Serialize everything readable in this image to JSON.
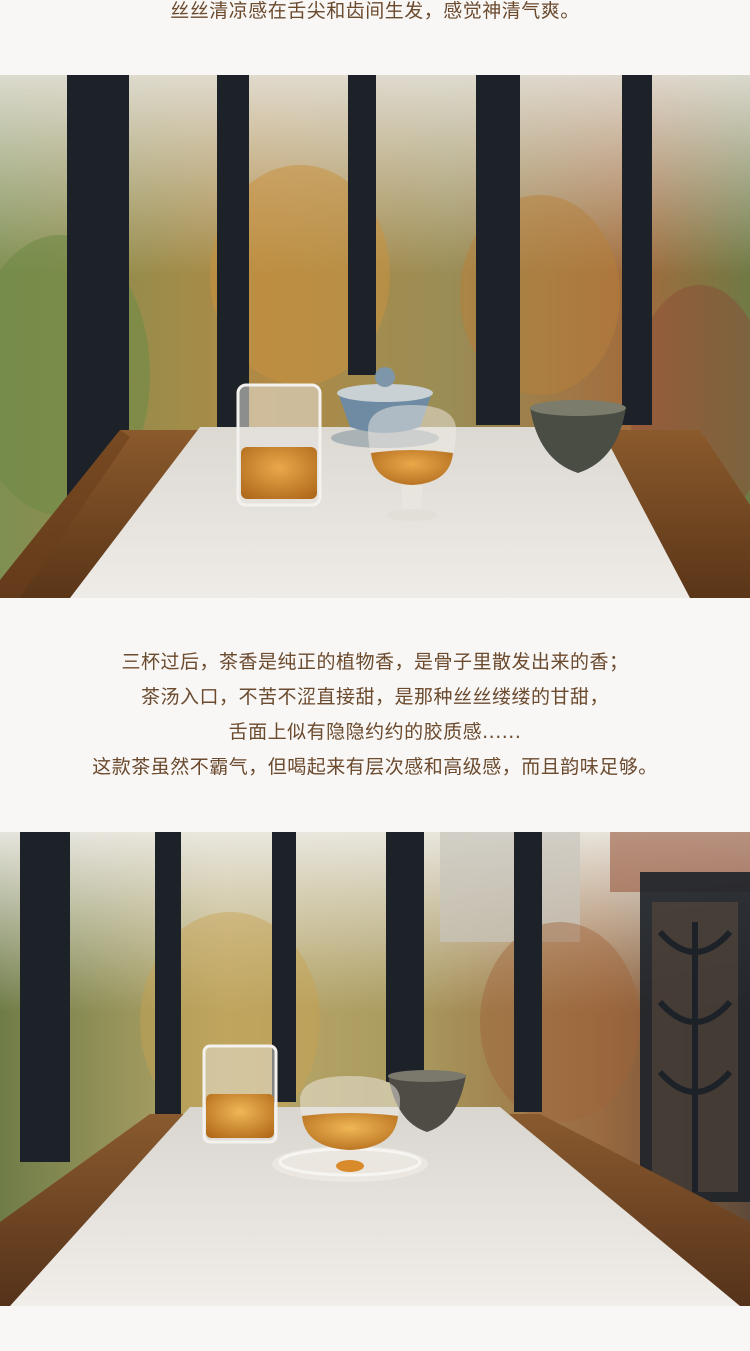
{
  "intro": {
    "line": "丝丝清凉感在舌尖和齿间生发，感觉神清气爽。"
  },
  "body_text": {
    "lines": [
      "三杯过后，茶香是纯正的植物香，是骨子里散发出来的香；",
      "茶汤入口，不苦不涩直接甜，是那种丝丝缕缕的甘甜，",
      "舌面上似有隐隐约约的胶质感......",
      "这款茶虽然不霸气，但喝起来有层次感和高级感，而且韵味足够。"
    ]
  },
  "colors": {
    "text": "#6b4a2e",
    "background": "#f8f7f5",
    "tea": "#c98a2a"
  }
}
